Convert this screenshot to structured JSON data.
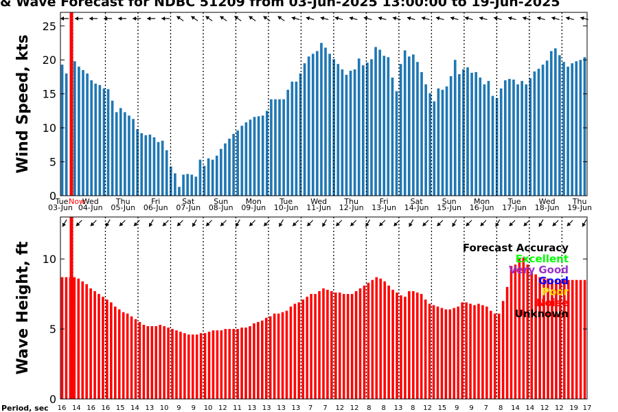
{
  "chart_data": [
    {
      "type": "bar",
      "title": "& Wave Forecast for NDBC 51209 from 03-Jun-2025 13:00:00 to 19-Jun-2025",
      "ylabel": "Wind Speed, kts",
      "ylim": [
        0,
        27
      ],
      "yticks": [
        0,
        5,
        10,
        15,
        20,
        25
      ],
      "grid": false,
      "color": "#1f77b4",
      "day_labels": [
        {
          "dow": "Tue",
          "date": "03-Jun"
        },
        {
          "dow": "Wed",
          "date": "04-Jun"
        },
        {
          "dow": "Thu",
          "date": "05-Jun"
        },
        {
          "dow": "Fri",
          "date": "06-Jun"
        },
        {
          "dow": "Sat",
          "date": "07-Jun"
        },
        {
          "dow": "Sun",
          "date": "08-Jun"
        },
        {
          "dow": "Mon",
          "date": "09-Jun"
        },
        {
          "dow": "Tue",
          "date": "10-Jun"
        },
        {
          "dow": "Wed",
          "date": "11-Jun"
        },
        {
          "dow": "Thu",
          "date": "12-Jun"
        },
        {
          "dow": "Fri",
          "date": "13-Jun"
        },
        {
          "dow": "Sat",
          "date": "14-Jun"
        },
        {
          "dow": "Sun",
          "date": "15-Jun"
        },
        {
          "dow": "Mon",
          "date": "16-Jun"
        },
        {
          "dow": "Tue",
          "date": "17-Jun"
        },
        {
          "dow": "Wed",
          "date": "18-Jun"
        },
        {
          "dow": "Thu",
          "date": "19-Jun"
        }
      ],
      "now_marker_label": "Now",
      "values": [
        19.3,
        18.0,
        0,
        19.8,
        19.0,
        18.5,
        18.0,
        17.0,
        16.5,
        16.3,
        15.8,
        15.7,
        14.0,
        12.3,
        12.9,
        12.3,
        11.8,
        11.3,
        9.8,
        9.2,
        8.9,
        9.0,
        8.6,
        7.9,
        8.1,
        6.7,
        4.3,
        3.3,
        1.3,
        3.1,
        3.2,
        3.1,
        2.8,
        5.3,
        4.4,
        5.5,
        5.3,
        5.9,
        6.9,
        7.7,
        8.4,
        9.1,
        9.6,
        10.3,
        10.8,
        11.2,
        11.6,
        11.7,
        11.8,
        12.5,
        14.2,
        14.2,
        14.2,
        14.2,
        15.6,
        16.8,
        16.8,
        18.0,
        19.5,
        20.5,
        20.9,
        21.3,
        22.5,
        21.8,
        20.9,
        20.1,
        19.4,
        18.6,
        17.8,
        18.4,
        18.6,
        20.2,
        19.2,
        19.6,
        20.1,
        21.9,
        21.5,
        20.6,
        20.4,
        17.4,
        15.4,
        19.4,
        21.4,
        20.5,
        20.8,
        19.7,
        18.2,
        16.4,
        15.1,
        13.9,
        15.8,
        15.6,
        16.1,
        17.6,
        20.0,
        17.9,
        18.6,
        18.9,
        18.1,
        18.2,
        17.4,
        16.4,
        16.9,
        14.7,
        14.4,
        15.8,
        17.0,
        17.2,
        17.1,
        16.4,
        16.9,
        16.4,
        17.3,
        18.3,
        18.7,
        19.3,
        19.9,
        21.3,
        21.7,
        20.7,
        19.7,
        19.0,
        19.5,
        19.8,
        20.0,
        20.4
      ]
    },
    {
      "type": "bar",
      "ylabel": "Wave Height, ft",
      "ylim": [
        0,
        13
      ],
      "yticks": [
        0,
        5,
        10
      ],
      "grid": false,
      "color": "#ff0000",
      "values": [
        8.7,
        8.7,
        8.7,
        8.7,
        8.6,
        8.4,
        8.2,
        7.9,
        7.7,
        7.5,
        7.3,
        7.1,
        6.9,
        6.6,
        6.4,
        6.2,
        6.1,
        5.9,
        5.7,
        5.5,
        5.3,
        5.2,
        5.2,
        5.2,
        5.3,
        5.2,
        5.1,
        5.0,
        4.9,
        4.8,
        4.7,
        4.6,
        4.6,
        4.6,
        4.7,
        4.7,
        4.8,
        4.9,
        4.9,
        4.9,
        5.0,
        5.0,
        5.0,
        5.0,
        5.1,
        5.1,
        5.2,
        5.4,
        5.5,
        5.6,
        5.8,
        5.9,
        6.1,
        6.1,
        6.2,
        6.3,
        6.6,
        6.8,
        6.9,
        7.1,
        7.3,
        7.5,
        7.5,
        7.7,
        7.9,
        7.8,
        7.7,
        7.6,
        7.6,
        7.5,
        7.5,
        7.5,
        7.7,
        7.9,
        8.1,
        8.3,
        8.5,
        8.7,
        8.6,
        8.4,
        8.1,
        7.8,
        7.6,
        7.4,
        7.3,
        7.7,
        7.7,
        7.6,
        7.5,
        7.1,
        6.8,
        6.7,
        6.6,
        6.5,
        6.4,
        6.4,
        6.5,
        6.6,
        6.9,
        6.9,
        6.8,
        6.7,
        6.8,
        6.7,
        6.6,
        6.3,
        6.1,
        6.1,
        7.0,
        8.0,
        9.5,
        9.6,
        10.1,
        10.1,
        9.6,
        9.1,
        8.9,
        8.7,
        8.6,
        8.6,
        8.5,
        8.5,
        8.5,
        8.5,
        8.5,
        8.5,
        8.5,
        8.5,
        8.5
      ]
    }
  ],
  "legend": {
    "title": "Forecast Accuracy",
    "items": [
      {
        "label": "Excellent",
        "color": "#00ff00"
      },
      {
        "label": "Very Good",
        "color": "#9932cc"
      },
      {
        "label": "Good",
        "color": "#0000ff"
      },
      {
        "label": "Poor",
        "color": "#ffd700"
      },
      {
        "label": "Noise",
        "color": "#ff0000"
      },
      {
        "label": "Unknown",
        "color": "#000000"
      }
    ]
  },
  "period": {
    "label": "Period, sec",
    "values": [
      16,
      14,
      16,
      16,
      15,
      14,
      13,
      10,
      9,
      9,
      10,
      12,
      11,
      13,
      13,
      13,
      13,
      7,
      7,
      12,
      12,
      8,
      8,
      13,
      8,
      12,
      15,
      9,
      9,
      7,
      8,
      14,
      14,
      12,
      12,
      19,
      17
    ]
  }
}
